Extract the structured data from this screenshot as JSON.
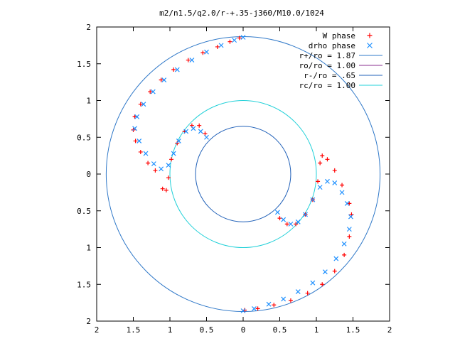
{
  "chart_data": {
    "type": "scatter",
    "title": "m2/n1.5/q2.0/r-+.35-j360/M10.0/1024",
    "xlabel": "",
    "ylabel": "",
    "xlim": [
      -2,
      2
    ],
    "ylim": [
      -2,
      2
    ],
    "x_ticks": [
      {
        "value": -2,
        "label": "2"
      },
      {
        "value": -1.5,
        "label": "1.5"
      },
      {
        "value": -1,
        "label": "1"
      },
      {
        "value": -0.5,
        "label": "0.5"
      },
      {
        "value": 0,
        "label": "0"
      },
      {
        "value": 0.5,
        "label": "0.5"
      },
      {
        "value": 1,
        "label": "1"
      },
      {
        "value": 1.5,
        "label": "1.5"
      },
      {
        "value": 2,
        "label": "2"
      }
    ],
    "y_ticks": [
      {
        "value": 2,
        "label": "2"
      },
      {
        "value": 1.5,
        "label": "1.5"
      },
      {
        "value": 1,
        "label": "1"
      },
      {
        "value": 0.5,
        "label": "0.5"
      },
      {
        "value": 0,
        "label": "0"
      },
      {
        "value": -0.5,
        "label": "0.5"
      },
      {
        "value": -1,
        "label": "1"
      },
      {
        "value": -1.5,
        "label": "1.5"
      },
      {
        "value": -2,
        "label": "2"
      }
    ],
    "legend_position": "top-right",
    "grid": false,
    "circles": [
      {
        "name": "r+/ro = 1.87",
        "radius": 1.87,
        "color": "#2f78c8"
      },
      {
        "name": "ro/ro = 1.00",
        "radius": 1.0,
        "color": "#8a2f8f",
        "drawn": false
      },
      {
        "name": "r-/ro = .65",
        "radius": 0.65,
        "color": "#2060b8"
      },
      {
        "name": "rc/ro = 1.00",
        "radius": 1.0,
        "color": "#20d0d8"
      }
    ],
    "series": [
      {
        "name": "W phase",
        "marker": "+",
        "color": "#ff0000",
        "points": [
          [
            -0.05,
            1.85
          ],
          [
            -0.18,
            1.8
          ],
          [
            -0.35,
            1.73
          ],
          [
            -0.55,
            1.65
          ],
          [
            -0.75,
            1.55
          ],
          [
            -0.95,
            1.42
          ],
          [
            -1.12,
            1.28
          ],
          [
            -1.27,
            1.12
          ],
          [
            -1.4,
            0.95
          ],
          [
            -1.48,
            0.78
          ],
          [
            -1.5,
            0.6
          ],
          [
            -1.47,
            0.45
          ],
          [
            -1.4,
            0.3
          ],
          [
            -1.3,
            0.15
          ],
          [
            -1.2,
            0.05
          ],
          [
            -1.1,
            -0.2
          ],
          [
            -1.05,
            -0.22
          ],
          [
            -1.02,
            -0.05
          ],
          [
            -0.98,
            0.2
          ],
          [
            -0.9,
            0.42
          ],
          [
            -0.8,
            0.58
          ],
          [
            -0.7,
            0.66
          ],
          [
            -0.6,
            0.66
          ],
          [
            -0.52,
            0.55
          ],
          [
            1.08,
            0.25
          ],
          [
            1.15,
            0.2
          ],
          [
            1.25,
            0.05
          ],
          [
            1.35,
            -0.15
          ],
          [
            1.45,
            -0.4
          ],
          [
            1.48,
            -0.55
          ],
          [
            1.45,
            -0.85
          ],
          [
            1.38,
            -1.1
          ],
          [
            1.25,
            -1.32
          ],
          [
            1.08,
            -1.5
          ],
          [
            0.88,
            -1.62
          ],
          [
            0.65,
            -1.72
          ],
          [
            0.42,
            -1.78
          ],
          [
            0.2,
            -1.83
          ],
          [
            0.02,
            -1.85
          ],
          [
            1.05,
            0.15
          ],
          [
            1.02,
            -0.1
          ],
          [
            0.95,
            -0.35
          ],
          [
            0.85,
            -0.55
          ],
          [
            0.72,
            -0.68
          ],
          [
            0.6,
            -0.68
          ],
          [
            0.5,
            -0.6
          ]
        ]
      },
      {
        "name": "drho phase",
        "marker": "x",
        "color": "#1e90ff",
        "points": [
          [
            0.0,
            1.86
          ],
          [
            -0.12,
            1.82
          ],
          [
            -0.3,
            1.75
          ],
          [
            -0.5,
            1.66
          ],
          [
            -0.7,
            1.55
          ],
          [
            -0.9,
            1.42
          ],
          [
            -1.08,
            1.28
          ],
          [
            -1.23,
            1.12
          ],
          [
            -1.36,
            0.95
          ],
          [
            -1.45,
            0.78
          ],
          [
            -1.48,
            0.62
          ],
          [
            -1.42,
            0.45
          ],
          [
            -1.33,
            0.28
          ],
          [
            -1.22,
            0.14
          ],
          [
            -1.12,
            0.07
          ],
          [
            -1.02,
            0.12
          ],
          [
            -0.95,
            0.28
          ],
          [
            -0.88,
            0.45
          ],
          [
            -0.78,
            0.58
          ],
          [
            -0.68,
            0.62
          ],
          [
            -0.58,
            0.58
          ],
          [
            -0.5,
            0.5
          ],
          [
            0.0,
            -1.86
          ],
          [
            0.15,
            -1.83
          ],
          [
            0.35,
            -1.77
          ],
          [
            0.55,
            -1.7
          ],
          [
            0.75,
            -1.6
          ],
          [
            0.95,
            -1.48
          ],
          [
            1.12,
            -1.33
          ],
          [
            1.27,
            -1.15
          ],
          [
            1.38,
            -0.95
          ],
          [
            1.45,
            -0.75
          ],
          [
            1.47,
            -0.58
          ],
          [
            1.42,
            -0.4
          ],
          [
            1.35,
            -0.25
          ],
          [
            1.25,
            -0.12
          ],
          [
            1.15,
            -0.1
          ],
          [
            1.05,
            -0.18
          ],
          [
            0.95,
            -0.35
          ],
          [
            0.85,
            -0.55
          ],
          [
            0.75,
            -0.65
          ],
          [
            0.65,
            -0.68
          ],
          [
            0.55,
            -0.62
          ],
          [
            0.47,
            -0.52
          ]
        ]
      }
    ]
  }
}
